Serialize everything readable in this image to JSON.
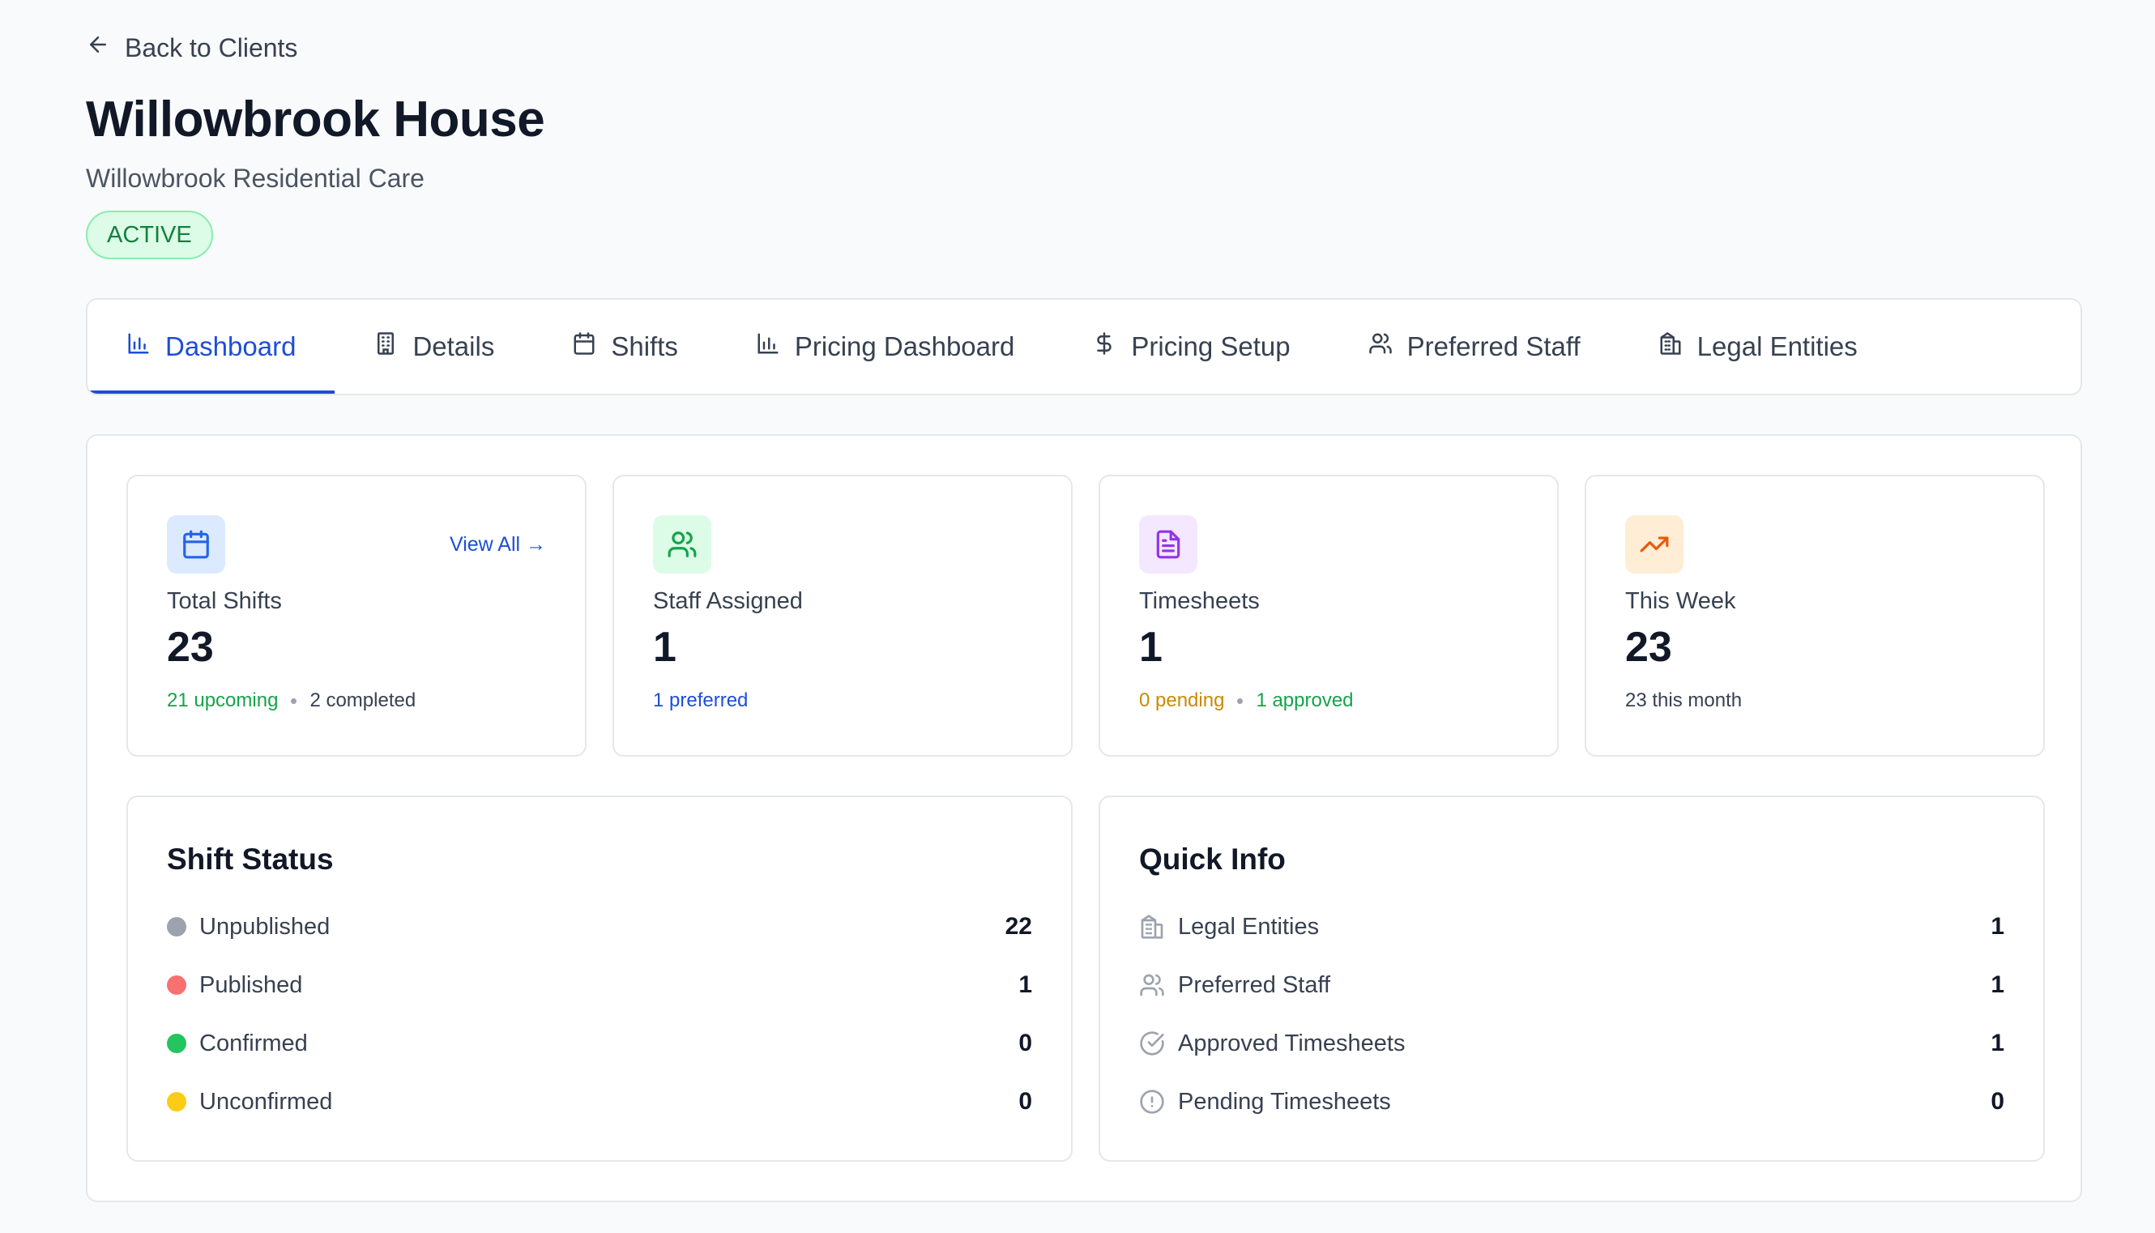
{
  "header": {
    "back_label": "Back to Clients",
    "title": "Willowbrook House",
    "subtitle": "Willowbrook Residential Care",
    "status_badge": "ACTIVE"
  },
  "tabs": [
    {
      "label": "Dashboard",
      "icon": "bar-chart-icon",
      "active": true
    },
    {
      "label": "Details",
      "icon": "building-icon"
    },
    {
      "label": "Shifts",
      "icon": "calendar-icon"
    },
    {
      "label": "Pricing Dashboard",
      "icon": "bar-chart-icon"
    },
    {
      "label": "Pricing Setup",
      "icon": "dollar-icon"
    },
    {
      "label": "Preferred Staff",
      "icon": "users-icon"
    },
    {
      "label": "Legal Entities",
      "icon": "buildings-icon"
    }
  ],
  "stats": {
    "total_shifts": {
      "label": "Total Shifts",
      "value": "23",
      "upcoming": "21 upcoming",
      "completed": "2 completed",
      "link": "View All →",
      "icon": "calendar-icon"
    },
    "staff_assigned": {
      "label": "Staff Assigned",
      "value": "1",
      "preferred": "1 preferred",
      "icon": "users-icon"
    },
    "timesheets": {
      "label": "Timesheets",
      "value": "1",
      "pending": "0 pending",
      "approved": "1 approved",
      "icon": "document-icon"
    },
    "this_week": {
      "label": "This Week",
      "value": "23",
      "month": "23 this month",
      "icon": "trending-up-icon"
    }
  },
  "shift_status": {
    "title": "Shift Status",
    "items": [
      {
        "label": "Unpublished",
        "value": "22",
        "color": "#9ca3af"
      },
      {
        "label": "Published",
        "value": "1",
        "color": "#f87171"
      },
      {
        "label": "Confirmed",
        "value": "0",
        "color": "#22c55e"
      },
      {
        "label": "Unconfirmed",
        "value": "0",
        "color": "#facc15"
      }
    ]
  },
  "quick_info": {
    "title": "Quick Info",
    "items": [
      {
        "label": "Legal Entities",
        "value": "1",
        "icon": "buildings-icon"
      },
      {
        "label": "Preferred Staff",
        "value": "1",
        "icon": "users-icon"
      },
      {
        "label": "Approved Timesheets",
        "value": "1",
        "icon": "check-circle-icon"
      },
      {
        "label": "Pending Timesheets",
        "value": "0",
        "icon": "alert-circle-icon"
      }
    ]
  },
  "colors": {
    "accent": "#1d4ed8",
    "success": "#15803d",
    "warning": "#ca8a04"
  }
}
